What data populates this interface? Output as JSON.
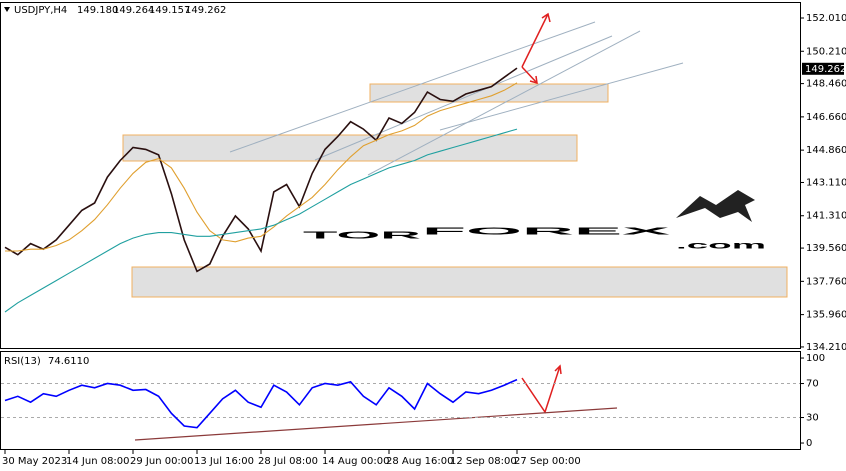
{
  "chart_data": [
    {
      "type": "line",
      "symbol": "USDJPY,H4",
      "ohlc": [
        {
          "value": 149.18,
          "label": "149.180"
        },
        {
          "value": 149.264,
          "label": "149.264"
        },
        {
          "value": 149.157,
          "label": "149.157"
        },
        {
          "value": 149.262,
          "label": "149.262"
        }
      ],
      "current_price": 149.262,
      "watermark": [
        "TOR",
        "FOREX",
        ".com"
      ],
      "categories": [
        null,
        null,
        null,
        null,
        null,
        null,
        null,
        null,
        null,
        null,
        null,
        null,
        null,
        null,
        null,
        null,
        null,
        null,
        null,
        null,
        null,
        null,
        null,
        null,
        null,
        null,
        null,
        null,
        null,
        null,
        null,
        null,
        null,
        null,
        null,
        null,
        null,
        null,
        null,
        null,
        null
      ],
      "series": [
        {
          "color": "#2a1010",
          "values": [
            139.6,
            139.2,
            139.8,
            139.5,
            140.0,
            140.8,
            141.6,
            142.0,
            143.4,
            144.3,
            145.0,
            144.9,
            144.6,
            142.5,
            140.0,
            138.3,
            138.7,
            140.2,
            141.3,
            140.6,
            139.4,
            142.6,
            143.0,
            141.8,
            143.6,
            144.9,
            145.6,
            146.4,
            146.0,
            145.4,
            146.6,
            146.3,
            146.9,
            148.0,
            147.6,
            147.5,
            147.9,
            148.1,
            148.3,
            148.8,
            149.3
          ]
        },
        {
          "color": "#e0a030",
          "values": [
            139.4,
            139.4,
            139.5,
            139.5,
            139.7,
            140.0,
            140.5,
            141.1,
            141.9,
            142.8,
            143.6,
            144.2,
            144.4,
            143.9,
            142.8,
            141.5,
            140.5,
            140.0,
            139.9,
            140.1,
            140.2,
            140.7,
            141.3,
            141.8,
            142.3,
            143.0,
            143.8,
            144.5,
            145.1,
            145.4,
            145.7,
            145.9,
            146.2,
            146.7,
            147.0,
            147.2,
            147.4,
            147.6,
            147.8,
            148.1,
            148.5
          ]
        },
        {
          "color": "#20a0a0",
          "values": [
            136.1,
            136.6,
            137.0,
            137.4,
            137.8,
            138.2,
            138.6,
            139.0,
            139.4,
            139.8,
            140.1,
            140.3,
            140.4,
            140.4,
            140.3,
            140.2,
            140.2,
            140.3,
            140.4,
            140.5,
            140.6,
            140.8,
            141.1,
            141.4,
            141.8,
            142.2,
            142.6,
            143.0,
            143.3,
            143.6,
            143.9,
            144.1,
            144.3,
            144.6,
            144.8,
            145.0,
            145.2,
            145.4,
            145.6,
            145.8,
            146.0
          ]
        }
      ],
      "ylim": [
        134.153,
        152.876
      ],
      "yticks": [
        {
          "value": 152.01,
          "label": "152.010"
        },
        {
          "value": 150.21,
          "label": "150.210"
        },
        {
          "value": 148.46,
          "label": "148.460"
        },
        {
          "value": 146.66,
          "label": "146.660"
        },
        {
          "value": 144.86,
          "label": "144.860"
        },
        {
          "value": 143.11,
          "label": "143.110"
        },
        {
          "value": 141.31,
          "label": "141.310"
        },
        {
          "value": 139.56,
          "label": "139.560"
        },
        {
          "value": 137.76,
          "label": "137.760"
        },
        {
          "value": 135.96,
          "label": "135.960"
        },
        {
          "value": 134.21,
          "label": "134.210"
        }
      ],
      "grid": false
    },
    {
      "type": "line",
      "indicator": "RSI(13)",
      "last_value": {
        "value": 74.611,
        "label": "74.6110"
      },
      "categories": [
        "30 May 2023",
        null,
        null,
        null,
        null,
        "14 Jun 08:00",
        null,
        null,
        null,
        null,
        "29 Jun 00:00",
        null,
        null,
        null,
        null,
        "13 Jul 16:00",
        null,
        null,
        null,
        null,
        "28 Jul 08:00",
        null,
        null,
        null,
        null,
        "14 Aug 00:00",
        null,
        null,
        null,
        null,
        "28 Aug 16:00",
        null,
        null,
        null,
        null,
        "12 Sep 08:00",
        null,
        null,
        null,
        null,
        "27 Sep 00:00"
      ],
      "series": [
        {
          "color": "#0000ff",
          "values": [
            50,
            55,
            48,
            58,
            55,
            62,
            68,
            65,
            70,
            68,
            62,
            63,
            55,
            35,
            20,
            18,
            35,
            52,
            62,
            48,
            42,
            68,
            60,
            45,
            65,
            70,
            68,
            72,
            55,
            45,
            65,
            55,
            40,
            70,
            58,
            48,
            60,
            58,
            62,
            68,
            74.6
          ]
        }
      ],
      "ylim": [
        -8.2,
        107.1
      ],
      "yticks": [
        0,
        30,
        70,
        100
      ],
      "grid": false
    }
  ]
}
